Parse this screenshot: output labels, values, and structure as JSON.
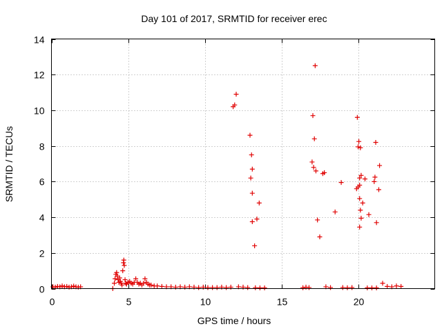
{
  "chart_data": {
    "type": "scatter",
    "title": "Day 101 of 2017, SRMTID for receiver erec",
    "xlabel": "GPS time / hours",
    "ylabel": "SRMTID / TECUs",
    "xlim": [
      0,
      25
    ],
    "ylim": [
      0,
      14
    ],
    "xticks": [
      0,
      5,
      10,
      15,
      20
    ],
    "xtick_labels": [
      "0",
      "5",
      "10",
      "15",
      "20"
    ],
    "yticks": [
      0,
      2,
      4,
      6,
      8,
      10,
      12,
      14
    ],
    "ytick_labels": [
      "0",
      "2",
      "4",
      "6",
      "8",
      "10",
      "12",
      "14"
    ],
    "grid": true,
    "marker": "+",
    "color": "#e00000",
    "series": [
      {
        "name": "SRMTID",
        "points": [
          [
            0.1,
            0.1
          ],
          [
            0.25,
            0.08
          ],
          [
            0.4,
            0.12
          ],
          [
            0.55,
            0.1
          ],
          [
            0.7,
            0.15
          ],
          [
            0.85,
            0.1
          ],
          [
            1.0,
            0.12
          ],
          [
            1.15,
            0.08
          ],
          [
            1.3,
            0.1
          ],
          [
            1.45,
            0.14
          ],
          [
            1.6,
            0.1
          ],
          [
            1.75,
            0.08
          ],
          [
            1.9,
            0.1
          ],
          [
            4.0,
            0.0
          ],
          [
            4.1,
            0.3
          ],
          [
            4.15,
            0.55
          ],
          [
            4.2,
            0.8
          ],
          [
            4.25,
            0.9
          ],
          [
            4.3,
            0.7
          ],
          [
            4.35,
            0.5
          ],
          [
            4.4,
            0.35
          ],
          [
            4.45,
            0.6
          ],
          [
            4.5,
            0.4
          ],
          [
            4.55,
            0.3
          ],
          [
            4.6,
            0.2
          ],
          [
            4.65,
            1.0
          ],
          [
            4.7,
            1.45
          ],
          [
            4.72,
            1.6
          ],
          [
            4.75,
            1.3
          ],
          [
            4.8,
            0.5
          ],
          [
            4.85,
            0.3
          ],
          [
            4.9,
            0.25
          ],
          [
            5.0,
            0.35
          ],
          [
            5.1,
            0.4
          ],
          [
            5.2,
            0.3
          ],
          [
            5.3,
            0.25
          ],
          [
            5.4,
            0.35
          ],
          [
            5.5,
            0.55
          ],
          [
            5.6,
            0.35
          ],
          [
            5.7,
            0.25
          ],
          [
            5.8,
            0.3
          ],
          [
            5.9,
            0.2
          ],
          [
            6.0,
            0.3
          ],
          [
            6.1,
            0.55
          ],
          [
            6.2,
            0.35
          ],
          [
            6.3,
            0.25
          ],
          [
            6.4,
            0.2
          ],
          [
            6.5,
            0.2
          ],
          [
            6.7,
            0.15
          ],
          [
            6.9,
            0.15
          ],
          [
            7.2,
            0.12
          ],
          [
            7.5,
            0.1
          ],
          [
            7.8,
            0.1
          ],
          [
            8.1,
            0.08
          ],
          [
            8.4,
            0.1
          ],
          [
            8.7,
            0.08
          ],
          [
            9.0,
            0.1
          ],
          [
            9.3,
            0.08
          ],
          [
            9.6,
            0.06
          ],
          [
            9.9,
            0.08
          ],
          [
            10.2,
            0.06
          ],
          [
            10.5,
            0.06
          ],
          [
            10.8,
            0.06
          ],
          [
            11.1,
            0.08
          ],
          [
            11.4,
            0.06
          ],
          [
            11.7,
            0.08
          ],
          [
            11.85,
            10.2
          ],
          [
            11.95,
            10.3
          ],
          [
            12.05,
            10.9
          ],
          [
            12.2,
            0.1
          ],
          [
            12.5,
            0.08
          ],
          [
            12.8,
            0.06
          ],
          [
            12.95,
            8.6
          ],
          [
            13.05,
            7.5
          ],
          [
            13.1,
            6.7
          ],
          [
            13.0,
            6.2
          ],
          [
            13.1,
            5.35
          ],
          [
            13.1,
            3.75
          ],
          [
            13.25,
            2.4
          ],
          [
            13.4,
            3.9
          ],
          [
            13.55,
            4.8
          ],
          [
            13.3,
            0.05
          ],
          [
            13.6,
            0.04
          ],
          [
            13.9,
            0.04
          ],
          [
            16.4,
            0.05
          ],
          [
            16.6,
            0.08
          ],
          [
            16.8,
            0.06
          ],
          [
            17.0,
            7.1
          ],
          [
            17.05,
            9.7
          ],
          [
            17.1,
            6.8
          ],
          [
            17.15,
            8.4
          ],
          [
            17.2,
            12.5
          ],
          [
            17.25,
            6.6
          ],
          [
            17.35,
            3.85
          ],
          [
            17.5,
            2.9
          ],
          [
            17.8,
            6.5
          ],
          [
            17.7,
            6.45
          ],
          [
            17.9,
            0.1
          ],
          [
            18.2,
            0.06
          ],
          [
            18.5,
            4.3
          ],
          [
            18.9,
            5.95
          ],
          [
            19.0,
            0.06
          ],
          [
            19.3,
            0.05
          ],
          [
            19.6,
            0.06
          ],
          [
            19.9,
            5.6
          ],
          [
            19.95,
            9.6
          ],
          [
            20.0,
            5.7
          ],
          [
            20.05,
            8.25
          ],
          [
            20.0,
            7.95
          ],
          [
            20.1,
            5.8
          ],
          [
            20.15,
            7.9
          ],
          [
            20.1,
            6.2
          ],
          [
            20.2,
            6.35
          ],
          [
            20.1,
            5.05
          ],
          [
            20.15,
            4.4
          ],
          [
            20.2,
            3.95
          ],
          [
            20.1,
            3.45
          ],
          [
            20.3,
            4.8
          ],
          [
            20.45,
            6.15
          ],
          [
            20.7,
            4.15
          ],
          [
            21.1,
            6.25
          ],
          [
            21.15,
            8.2
          ],
          [
            21.2,
            3.7
          ],
          [
            21.05,
            6.0
          ],
          [
            21.35,
            5.55
          ],
          [
            21.4,
            6.9
          ],
          [
            21.6,
            0.3
          ],
          [
            21.9,
            0.12
          ],
          [
            22.2,
            0.1
          ],
          [
            22.5,
            0.15
          ],
          [
            22.8,
            0.12
          ],
          [
            20.6,
            0.04
          ],
          [
            20.9,
            0.04
          ],
          [
            21.2,
            0.04
          ]
        ]
      }
    ]
  }
}
